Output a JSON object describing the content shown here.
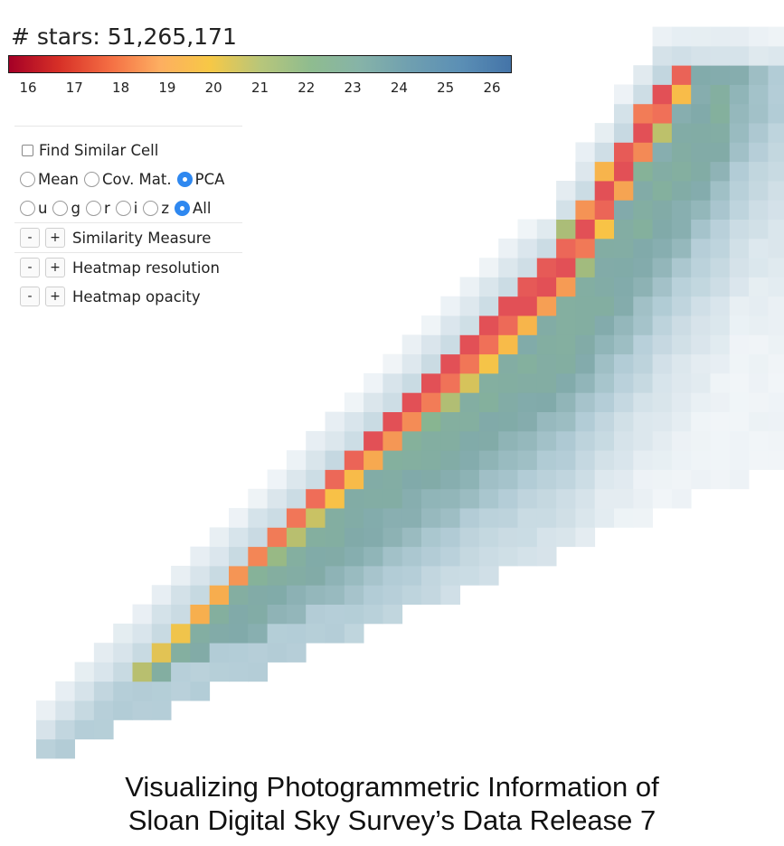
{
  "header": {
    "title": "# stars: 51,265,171"
  },
  "colorbar": {
    "ticks": [
      "16",
      "17",
      "18",
      "19",
      "20",
      "21",
      "22",
      "23",
      "24",
      "25",
      "26"
    ],
    "stops": [
      "#a50026",
      "#d73027",
      "#f46d43",
      "#fdae61",
      "#f7c846",
      "#b8c67a",
      "#8fbc8f",
      "#86b3a8",
      "#6f9fb0",
      "#5b8fb5",
      "#4474a8"
    ]
  },
  "panel": {
    "find_similar_label": "Find Similar Cell",
    "stat_options": [
      {
        "label": "Mean",
        "selected": false
      },
      {
        "label": "Cov. Mat.",
        "selected": false
      },
      {
        "label": "PCA",
        "selected": true
      }
    ],
    "band_options": [
      {
        "label": "u",
        "selected": false
      },
      {
        "label": "g",
        "selected": false
      },
      {
        "label": "r",
        "selected": false
      },
      {
        "label": "i",
        "selected": false
      },
      {
        "label": "z",
        "selected": false
      },
      {
        "label": "All",
        "selected": true
      }
    ],
    "minus_label": "-",
    "plus_label": "+",
    "similarity_label": "Similarity Measure",
    "resolution_label": "Heatmap resolution",
    "opacity_label": "Heatmap opacity"
  },
  "caption": {
    "line1": "Visualizing Photogrammetric Information of",
    "line2": "Sloan Digital Sky Survey’s Data Release 7"
  },
  "chart_data": {
    "type": "heatmap",
    "title": "# stars: 51,265,171",
    "colorbar_range": [
      16,
      26
    ],
    "colorbar_ticks": [
      16,
      17,
      18,
      19,
      20,
      21,
      22,
      23,
      24,
      25,
      26
    ],
    "grid_columns": 39,
    "grid_rows": 38
  }
}
